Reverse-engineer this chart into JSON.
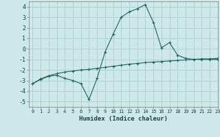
{
  "xlabel": "Humidex (Indice chaleur)",
  "background_color": "#cce8e8",
  "grid_color": "#aacccc",
  "line_color": "#1a6060",
  "xlim": [
    -0.5,
    23
  ],
  "ylim": [
    -5.5,
    4.5
  ],
  "yticks": [
    -5,
    -4,
    -3,
    -2,
    -1,
    0,
    1,
    2,
    3,
    4
  ],
  "xticks": [
    0,
    1,
    2,
    3,
    4,
    5,
    6,
    7,
    8,
    9,
    10,
    11,
    12,
    13,
    14,
    15,
    16,
    17,
    18,
    19,
    20,
    21,
    22,
    23
  ],
  "curve1_x": [
    0,
    1,
    2,
    3,
    4,
    5,
    6,
    7,
    8,
    9,
    10,
    11,
    12,
    13,
    14,
    15,
    16,
    17,
    18,
    19,
    20,
    21,
    22,
    23
  ],
  "curve1_y": [
    -3.3,
    -2.9,
    -2.6,
    -2.5,
    -2.8,
    -3.0,
    -3.3,
    -4.8,
    -2.8,
    -0.3,
    1.4,
    3.0,
    3.5,
    3.8,
    4.2,
    2.5,
    0.1,
    0.6,
    -0.6,
    -0.9,
    -1.0,
    -1.0,
    -1.0,
    -1.0
  ],
  "curve2_x": [
    0,
    1,
    2,
    3,
    4,
    5,
    6,
    7,
    8,
    9,
    10,
    11,
    12,
    13,
    14,
    15,
    16,
    17,
    18,
    19,
    20,
    21,
    22,
    23
  ],
  "curve2_y": [
    -3.3,
    -2.85,
    -2.55,
    -2.35,
    -2.2,
    -2.1,
    -2.0,
    -1.95,
    -1.85,
    -1.75,
    -1.65,
    -1.55,
    -1.45,
    -1.38,
    -1.3,
    -1.25,
    -1.2,
    -1.15,
    -1.1,
    -1.05,
    -1.0,
    -0.95,
    -0.95,
    -0.9
  ]
}
